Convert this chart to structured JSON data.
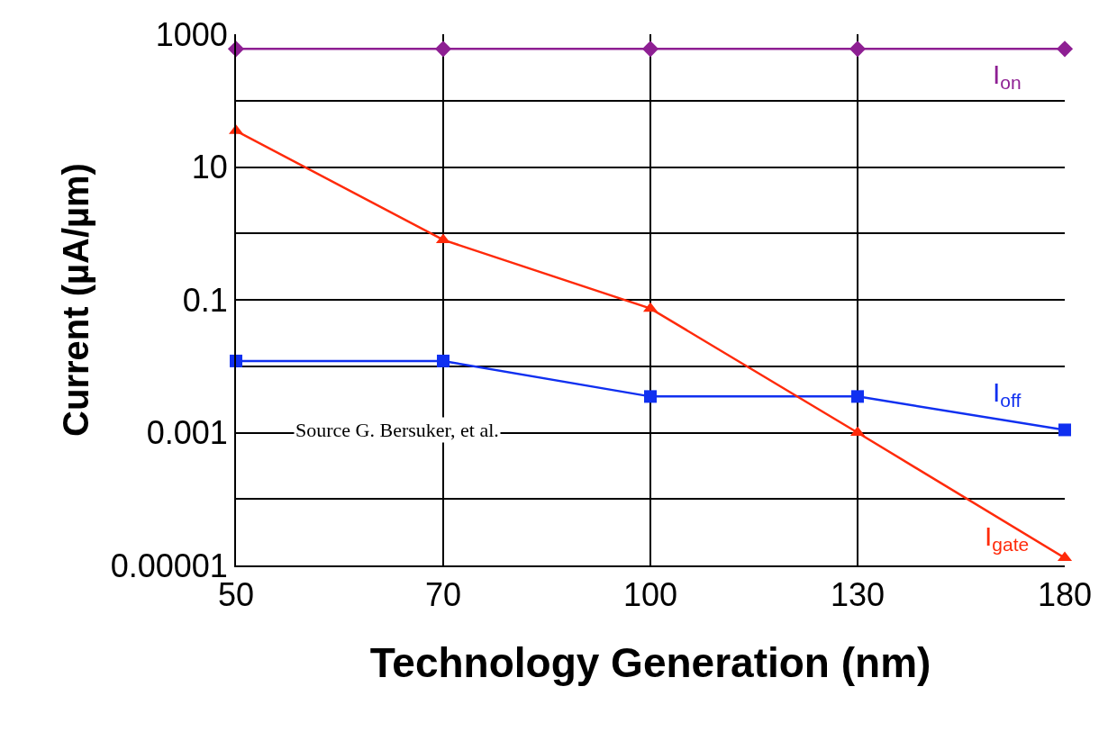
{
  "chart_data": {
    "type": "line",
    "xlabel": "Technology Generation (nm)",
    "ylabel": "Current (µA/µm)",
    "categories": [
      "50",
      "70",
      "100",
      "130",
      "180"
    ],
    "series": [
      {
        "name": "I$_{on}$",
        "color": "#8e1f93",
        "marker": "diamond",
        "values": [
          600,
          600,
          600,
          600,
          600
        ]
      },
      {
        "name": "I$_{off}$",
        "color": "#1030f0",
        "marker": "square",
        "values": [
          0.012,
          0.012,
          0.0035,
          0.0035,
          0.0011
        ]
      },
      {
        "name": "I$_{gate}$",
        "color": "#ff2a0a",
        "marker": "triangle",
        "values": [
          35,
          0.8,
          0.074,
          0.001,
          1.3e-05
        ]
      }
    ],
    "log": "y",
    "ylim": [
      1e-05,
      1000
    ],
    "yticks": [
      {
        "value": 1e-05,
        "label": "0.00001"
      },
      {
        "value": 0.0001,
        "label": null
      },
      {
        "value": 0.001,
        "label": "0.001"
      },
      {
        "value": 0.01,
        "label": null
      },
      {
        "value": 0.1,
        "label": "0.1"
      },
      {
        "value": 1,
        "label": null
      },
      {
        "value": 10,
        "label": "10"
      },
      {
        "value": 100,
        "label": null
      },
      {
        "value": 1000,
        "label": "1000"
      }
    ],
    "grid": true,
    "legend": false,
    "line_style": "solid",
    "annotations": [
      "Source G. Bersuker, et al."
    ]
  }
}
